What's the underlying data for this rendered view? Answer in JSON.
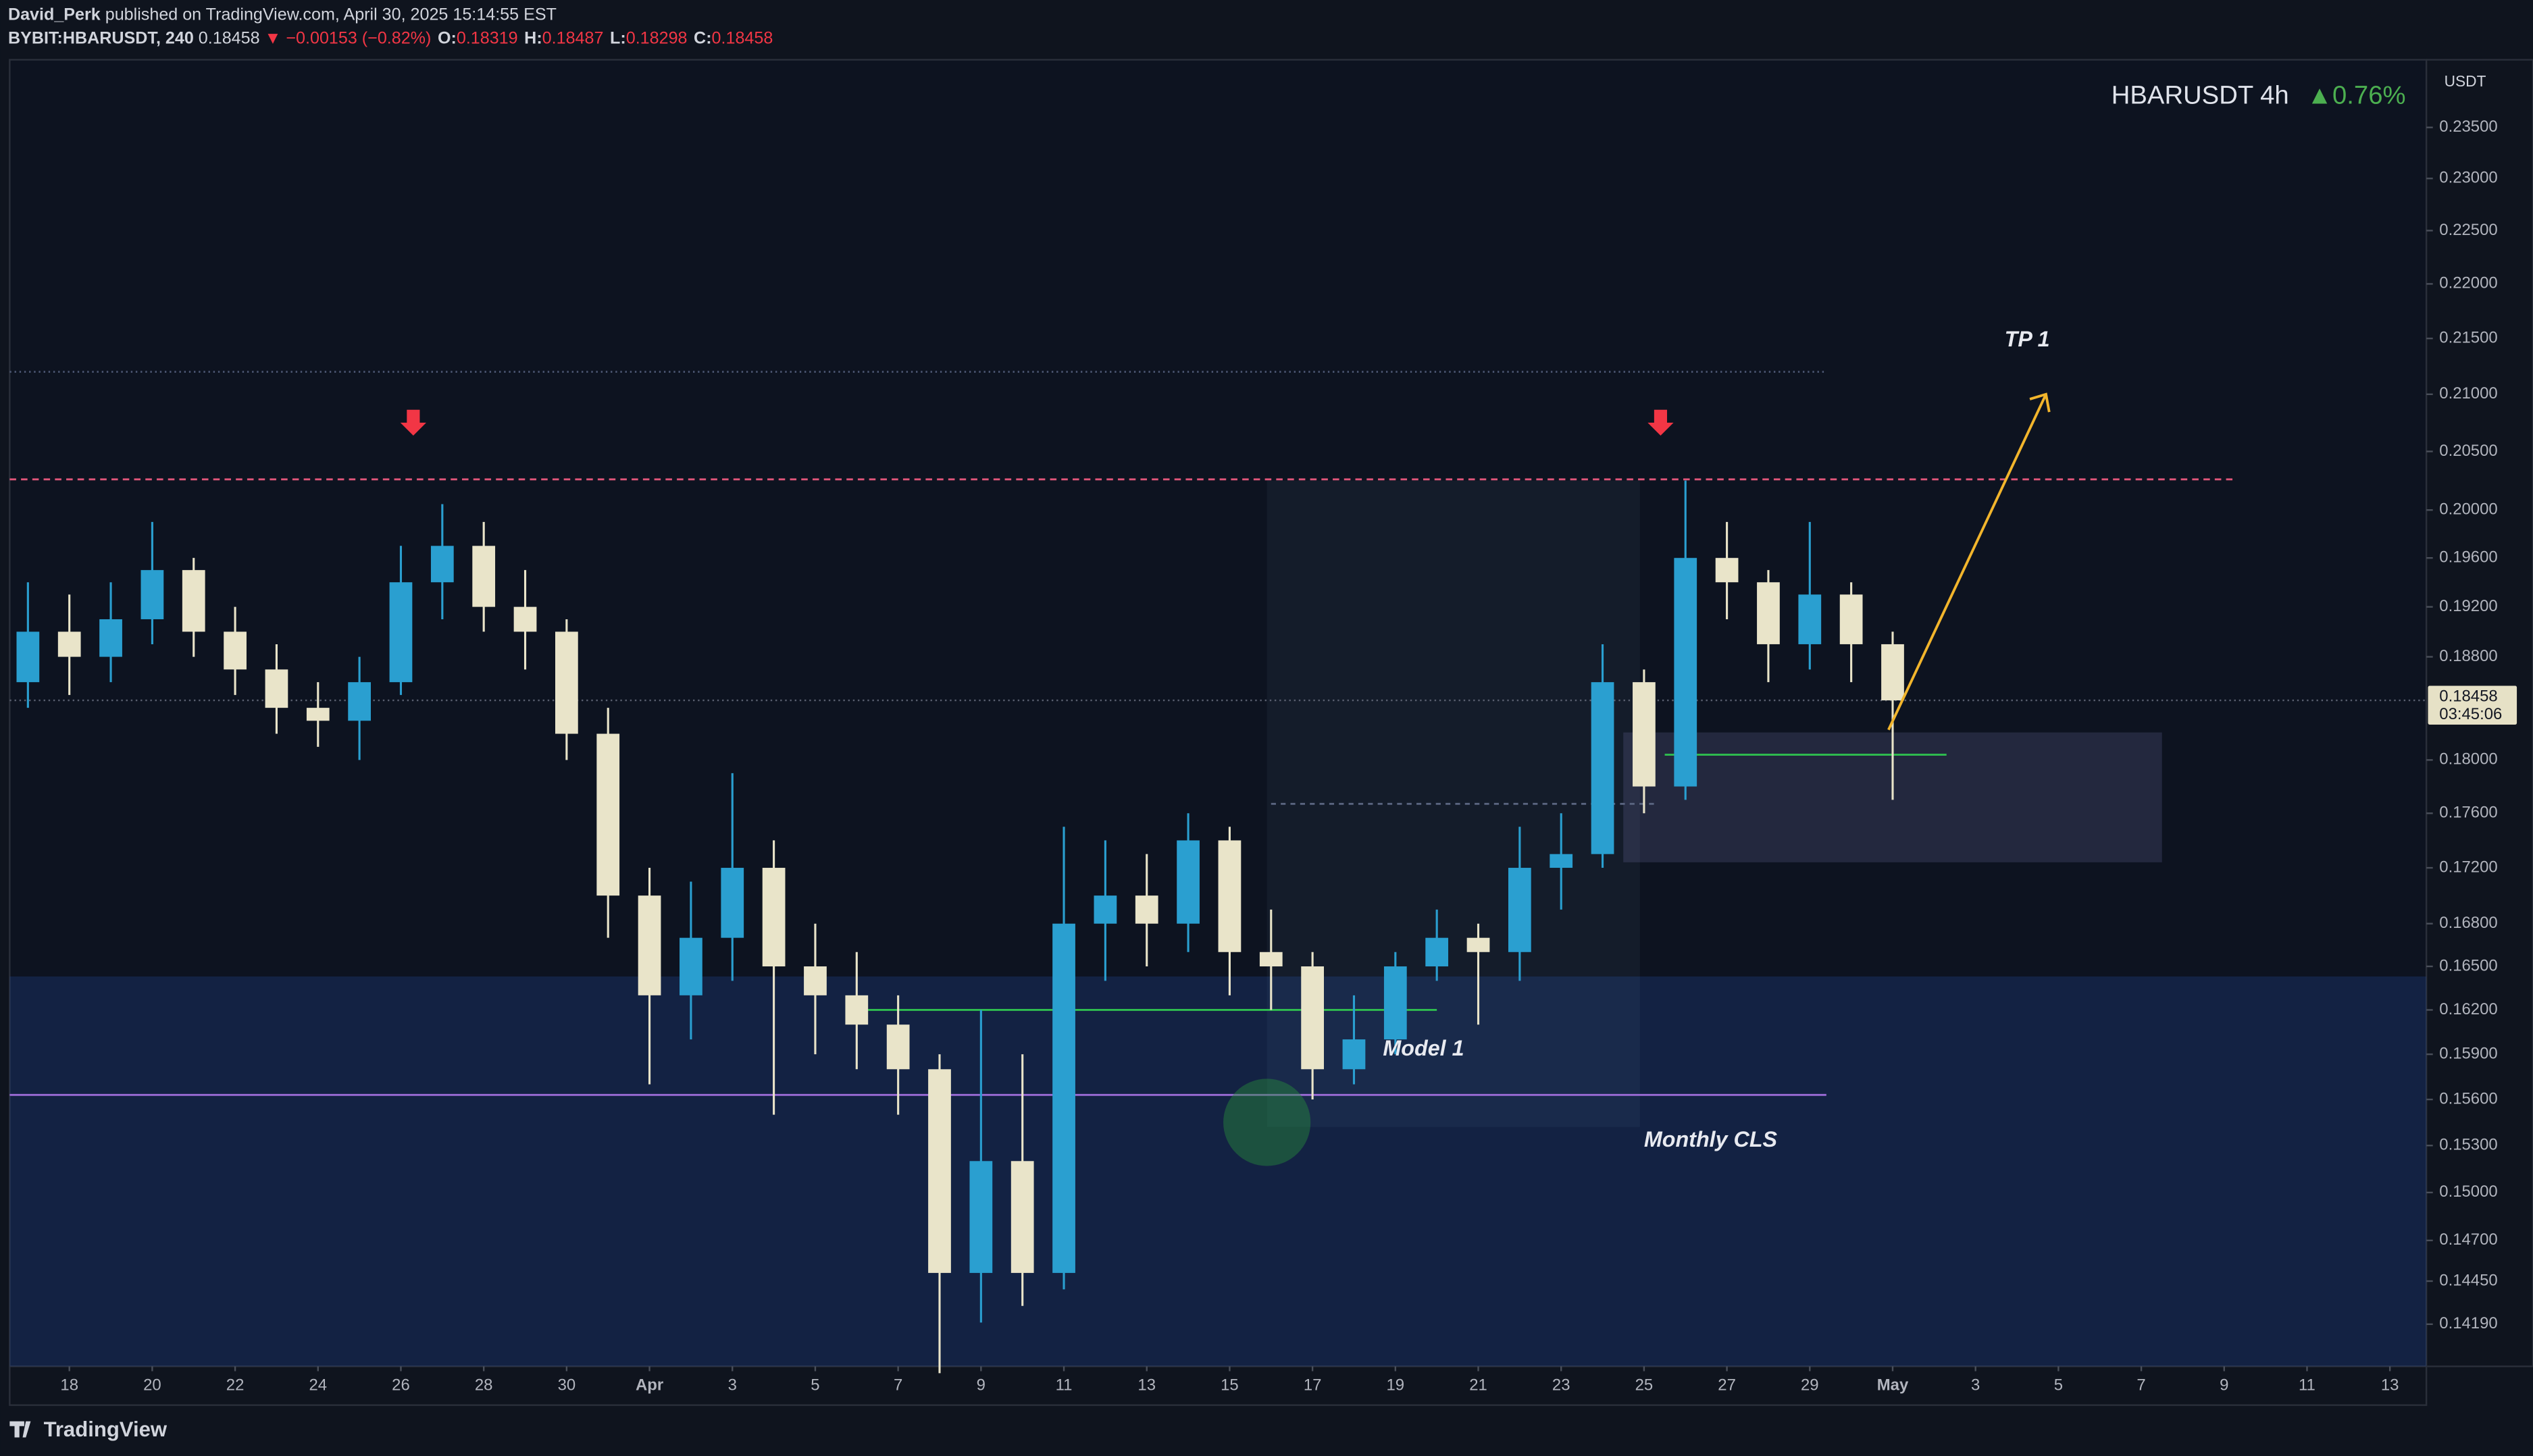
{
  "header": {
    "author": "David_Perk",
    "published": "published on TradingView.com, April 30, 2025 15:14:55 EST",
    "symbol": "BYBIT:HBARUSDT, 240",
    "last": "0.18458",
    "change": "▼ −0.00153 (−0.82%)",
    "ohlc": [
      {
        "key": "O:",
        "value": "0.18319"
      },
      {
        "key": "H:",
        "value": "0.18487"
      },
      {
        "key": "L:",
        "value": "0.18298"
      },
      {
        "key": "C:",
        "value": "0.18458"
      }
    ]
  },
  "footer": {
    "brand": "TradingView"
  },
  "chart_data": {
    "type": "candlestick",
    "legend": {
      "symbol": "HBARUSDT 4h",
      "change": "▲0.76%"
    },
    "currency": "USDT",
    "log_scale": true,
    "up_color": "#2a9fd0",
    "down_color": "#e9e4c9",
    "x": [
      76,
      77,
      78,
      79,
      80,
      81,
      82,
      83,
      84,
      85,
      86,
      87,
      88,
      89,
      90,
      91,
      92,
      93,
      94,
      95,
      96,
      97,
      98,
      99,
      100,
      101,
      102,
      103,
      104,
      105,
      106,
      107,
      108,
      109,
      110,
      111,
      112,
      113,
      114,
      115,
      116,
      117,
      118,
      119,
      120,
      121
    ],
    "open": [
      0.186,
      0.19,
      0.188,
      0.191,
      0.195,
      0.19,
      0.187,
      0.184,
      0.183,
      0.186,
      0.194,
      0.197,
      0.192,
      0.19,
      0.182,
      0.17,
      0.163,
      0.167,
      0.172,
      0.165,
      0.163,
      0.161,
      0.158,
      0.145,
      0.152,
      0.145,
      0.168,
      0.17,
      0.168,
      0.174,
      0.166,
      0.165,
      0.158,
      0.16,
      0.165,
      0.167,
      0.166,
      0.172,
      0.173,
      0.186,
      0.178,
      0.196,
      0.194,
      0.189,
      0.193,
      0.189
    ],
    "high": [
      0.194,
      0.193,
      0.194,
      0.199,
      0.196,
      0.192,
      0.189,
      0.186,
      0.188,
      0.197,
      0.2005,
      0.199,
      0.195,
      0.191,
      0.184,
      0.172,
      0.171,
      0.179,
      0.174,
      0.168,
      0.166,
      0.163,
      0.159,
      0.162,
      0.159,
      0.175,
      0.174,
      0.173,
      0.176,
      0.175,
      0.169,
      0.166,
      0.163,
      0.166,
      0.169,
      0.168,
      0.175,
      0.176,
      0.189,
      0.187,
      0.2025,
      0.199,
      0.195,
      0.199,
      0.194,
      0.19
    ],
    "low": [
      0.184,
      0.185,
      0.186,
      0.189,
      0.188,
      0.185,
      0.182,
      0.181,
      0.18,
      0.185,
      0.191,
      0.19,
      0.187,
      0.18,
      0.167,
      0.157,
      0.16,
      0.164,
      0.155,
      0.159,
      0.158,
      0.155,
      0.139,
      0.142,
      0.143,
      0.144,
      0.164,
      0.165,
      0.166,
      0.163,
      0.162,
      0.156,
      0.157,
      0.159,
      0.164,
      0.161,
      0.164,
      0.169,
      0.172,
      0.176,
      0.177,
      0.191,
      0.186,
      0.187,
      0.186,
      0.177
    ],
    "close": [
      0.19,
      0.188,
      0.191,
      0.195,
      0.19,
      0.187,
      0.184,
      0.183,
      0.186,
      0.194,
      0.197,
      0.192,
      0.19,
      0.182,
      0.17,
      0.163,
      0.167,
      0.172,
      0.165,
      0.163,
      0.161,
      0.158,
      0.145,
      0.152,
      0.145,
      0.168,
      0.17,
      0.168,
      0.174,
      0.166,
      0.165,
      0.158,
      0.16,
      0.165,
      0.167,
      0.166,
      0.172,
      0.173,
      0.186,
      0.178,
      0.196,
      0.194,
      0.189,
      0.193,
      0.189,
      0.18458
    ],
    "last_price": {
      "value": 0.18458,
      "label": "0.18458",
      "countdown": "03:45:06"
    },
    "xlim": [
      75.56,
      133.88
    ],
    "ylim": [
      0.1394,
      0.2418
    ],
    "xticks": [
      {
        "value": 77,
        "label": "18"
      },
      {
        "value": 79,
        "label": "20"
      },
      {
        "value": 81,
        "label": "22"
      },
      {
        "value": 83,
        "label": "24"
      },
      {
        "value": 85,
        "label": "26"
      },
      {
        "value": 87,
        "label": "28"
      },
      {
        "value": 89,
        "label": "30"
      },
      {
        "value": 91,
        "label": "Apr"
      },
      {
        "value": 93,
        "label": "3"
      },
      {
        "value": 95,
        "label": "5"
      },
      {
        "value": 97,
        "label": "7"
      },
      {
        "value": 99,
        "label": "9"
      },
      {
        "value": 101,
        "label": "11"
      },
      {
        "value": 103,
        "label": "13"
      },
      {
        "value": 105,
        "label": "15"
      },
      {
        "value": 107,
        "label": "17"
      },
      {
        "value": 109,
        "label": "19"
      },
      {
        "value": 111,
        "label": "21"
      },
      {
        "value": 113,
        "label": "23"
      },
      {
        "value": 115,
        "label": "25"
      },
      {
        "value": 117,
        "label": "27"
      },
      {
        "value": 119,
        "label": "29"
      },
      {
        "value": 121,
        "label": "May"
      },
      {
        "value": 123,
        "label": "3"
      },
      {
        "value": 125,
        "label": "5"
      },
      {
        "value": 127,
        "label": "7"
      },
      {
        "value": 129,
        "label": "9"
      },
      {
        "value": 131,
        "label": "11"
      },
      {
        "value": 133,
        "label": "13"
      }
    ],
    "yticks": [
      {
        "value": 0.235,
        "label": "0.23500"
      },
      {
        "value": 0.23,
        "label": "0.23000"
      },
      {
        "value": 0.225,
        "label": "0.22500"
      },
      {
        "value": 0.22,
        "label": "0.22000"
      },
      {
        "value": 0.215,
        "label": "0.21500"
      },
      {
        "value": 0.21,
        "label": "0.21000"
      },
      {
        "value": 0.205,
        "label": "0.20500"
      },
      {
        "value": 0.2,
        "label": "0.20000"
      },
      {
        "value": 0.196,
        "label": "0.19600"
      },
      {
        "value": 0.192,
        "label": "0.19200"
      },
      {
        "value": 0.188,
        "label": "0.18800"
      },
      {
        "value": 0.18,
        "label": "0.18000"
      },
      {
        "value": 0.176,
        "label": "0.17600"
      },
      {
        "value": 0.172,
        "label": "0.17200"
      },
      {
        "value": 0.168,
        "label": "0.16800"
      },
      {
        "value": 0.165,
        "label": "0.16500"
      },
      {
        "value": 0.162,
        "label": "0.16200"
      },
      {
        "value": 0.159,
        "label": "0.15900"
      },
      {
        "value": 0.156,
        "label": "0.15600"
      },
      {
        "value": 0.153,
        "label": "0.15300"
      },
      {
        "value": 0.15,
        "label": "0.15000"
      },
      {
        "value": 0.147,
        "label": "0.14700"
      },
      {
        "value": 0.1445,
        "label": "0.14450"
      },
      {
        "value": 0.1419,
        "label": "0.14190"
      }
    ],
    "zones": [
      {
        "from": 75.56,
        "to": 133.88,
        "top": 0.1643,
        "bottom": 0.1394,
        "color": "rgba(40,90,190,0.22)"
      },
      {
        "from": 105.9,
        "to": 114.9,
        "top": 0.2025,
        "bottom": 0.1542,
        "color": "rgba(120,150,190,0.07)"
      },
      {
        "from": 114.5,
        "to": 127.5,
        "top": 0.1821,
        "bottom": 0.1724,
        "color": "rgba(140,140,200,0.18)"
      }
    ],
    "levels": [
      {
        "price": 0.2026,
        "from": 75.56,
        "to": 129.2,
        "color": "#e0567a",
        "dash": "4 3"
      },
      {
        "price": 0.212,
        "from": 75.56,
        "to": 119.4,
        "color": "#4a5570",
        "dash": "1 2"
      },
      {
        "price": 0.1563,
        "from": 75.56,
        "to": 119.4,
        "color": "#9b6bd6",
        "dash": ""
      },
      {
        "price": 0.162,
        "from": 96,
        "to": 110,
        "color": "#2fbf4f",
        "dash": ""
      },
      {
        "price": 0.1804,
        "from": 115.5,
        "to": 122.3,
        "color": "#2fbf4f",
        "dash": ""
      },
      {
        "price": 0.1767,
        "from": 106,
        "to": 115.3,
        "color": "#5a6580",
        "dash": "3 3"
      }
    ],
    "arrow": {
      "from": [
        120.9,
        0.1823
      ],
      "to": [
        124.7,
        0.21
      ],
      "color": "#f2b52c"
    },
    "signals": [
      {
        "x": 85.3,
        "price": 0.2075
      },
      {
        "x": 115.4,
        "price": 0.2075
      }
    ],
    "highlight": {
      "x": 105.9,
      "price": 0.1545
    },
    "annotations": [
      {
        "text": "TP 1",
        "x": 123.7,
        "price": 0.2148
      },
      {
        "text": "Model 1",
        "x": 108.7,
        "price": 0.1593
      },
      {
        "text": "Monthly CLS",
        "x": 115,
        "price": 0.1533
      }
    ]
  }
}
